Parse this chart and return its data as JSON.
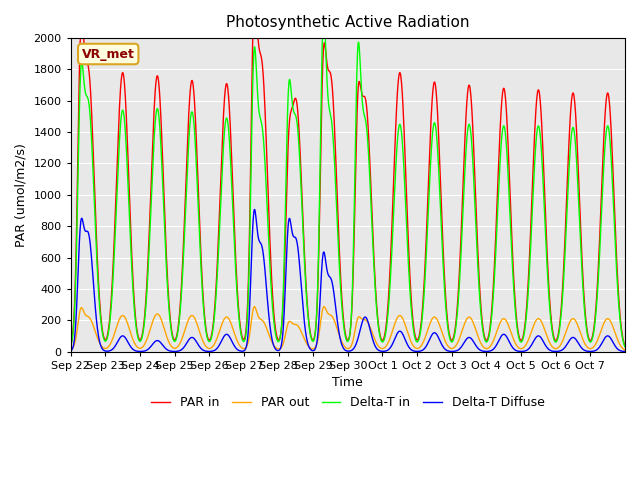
{
  "title": "Photosynthetic Active Radiation",
  "ylabel": "PAR (umol/m2/s)",
  "xlabel": "Time",
  "label_text": "VR_met",
  "ylim": [
    0,
    2000
  ],
  "legend": [
    "PAR in",
    "PAR out",
    "Delta-T in",
    "Delta-T Diffuse"
  ],
  "colors": [
    "red",
    "orange",
    "lime",
    "blue"
  ],
  "bg_color": "#e8e8e8",
  "xtick_labels": [
    "Sep 22",
    "Sep 23",
    "Sep 24",
    "Sep 25",
    "Sep 26",
    "Sep 27",
    "Sep 28",
    "Sep 29",
    "Sep 30",
    "Oct 1",
    "Oct 2",
    "Oct 3",
    "Oct 4",
    "Oct 5",
    "Oct 6",
    "Oct 7"
  ],
  "day_peaks_par_in": [
    1800,
    1780,
    1760,
    1730,
    1710,
    1850,
    1600,
    1750,
    1600,
    1780,
    1720,
    1700,
    1680,
    1670,
    1650,
    1650
  ],
  "day_peaks_par_out": [
    220,
    230,
    240,
    230,
    220,
    200,
    170,
    230,
    200,
    230,
    220,
    220,
    210,
    210,
    210,
    210
  ],
  "day_peaks_delta_in": [
    1590,
    1540,
    1550,
    1530,
    1490,
    1440,
    1480,
    1480,
    1460,
    1450,
    1460,
    1450,
    1440,
    1440,
    1430,
    1440
  ],
  "day_peaks_diffuse": [
    750,
    100,
    70,
    90,
    110,
    670,
    710,
    460,
    220,
    130,
    120,
    90,
    110,
    100,
    90,
    100
  ],
  "spike_offsets": [
    0.28,
    0.28,
    0.28,
    0.28,
    0.28
  ],
  "spike_days": [
    0,
    5,
    6,
    7,
    8
  ],
  "spike_par_in": [
    1180,
    1340,
    580,
    1030,
    850
  ],
  "spike_par_out": [
    150,
    170,
    90,
    150,
    100
  ],
  "spike_delta_in": [
    1000,
    1200,
    950,
    1400,
    1220
  ],
  "spike_diffuse": [
    550,
    650,
    570,
    460,
    0
  ]
}
